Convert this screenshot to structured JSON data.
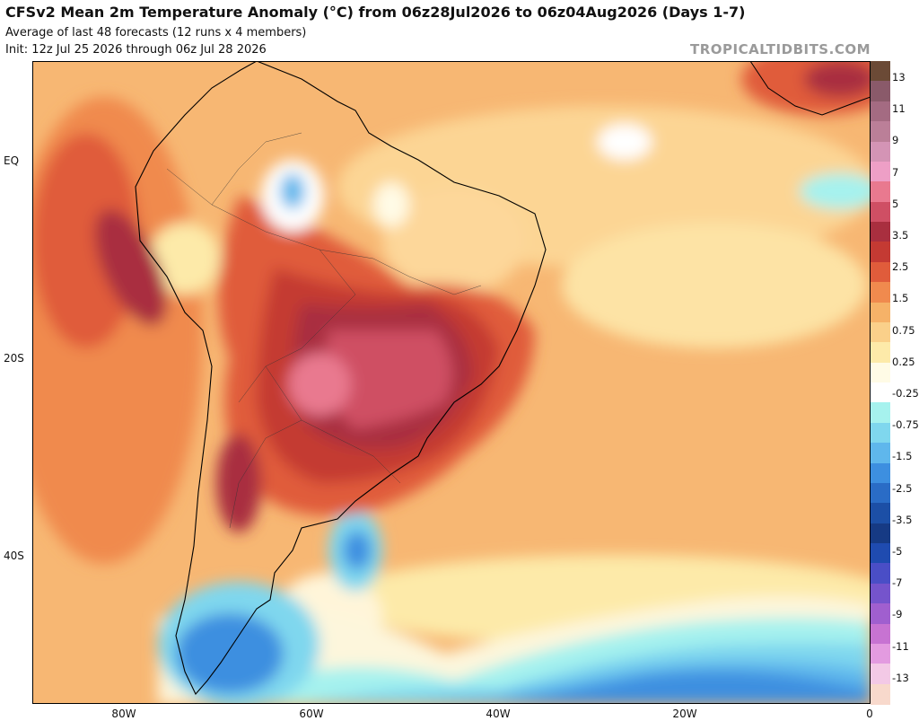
{
  "header": {
    "title": "CFSv2 Mean 2m Temperature Anomaly (°C) from 06z28Jul2026 to 06z04Aug2026 (Days 1-7)",
    "subtitle": "Average of last 48 forecasts (12 runs x 4 members)",
    "init": "Init: 12z Jul 25 2026 through 06z Jul 28 2026",
    "brand": "TROPICALTIDBITS.COM"
  },
  "axes": {
    "lat_labels": [
      "EQ",
      "20S",
      "40S"
    ],
    "lon_labels": [
      "80W",
      "60W",
      "40W",
      "20W",
      "0"
    ]
  },
  "legend": {
    "colors": [
      "#6b4a36",
      "#8a5a6a",
      "#a46b82",
      "#bb7f98",
      "#d494b5",
      "#ee9fc6",
      "#e9798f",
      "#cf4f64",
      "#a92f3f",
      "#c43a33",
      "#e05c3b",
      "#f08a4e",
      "#f6b268",
      "#fad08a",
      "#fdeaa9",
      "#fffbe6",
      "#ffffff",
      "#a6f2ee",
      "#7fd7ee",
      "#5fb7ec",
      "#3d8fe0",
      "#2a6cc6",
      "#1c4fa6",
      "#163a84",
      "#1f4bb0",
      "#4a4ec6",
      "#7554cc",
      "#a05fcf",
      "#c773d2",
      "#e39be0",
      "#f3c9e6",
      "#f8d9cc"
    ],
    "labels": [
      "13",
      "11",
      "9",
      "7",
      "5",
      "3.5",
      "2.5",
      "1.5",
      "0.75",
      "0.25",
      "-0.25",
      "-0.75",
      "-1.5",
      "-2.5",
      "-3.5",
      "-5",
      "-7",
      "-9",
      "-11",
      "-13"
    ]
  }
}
